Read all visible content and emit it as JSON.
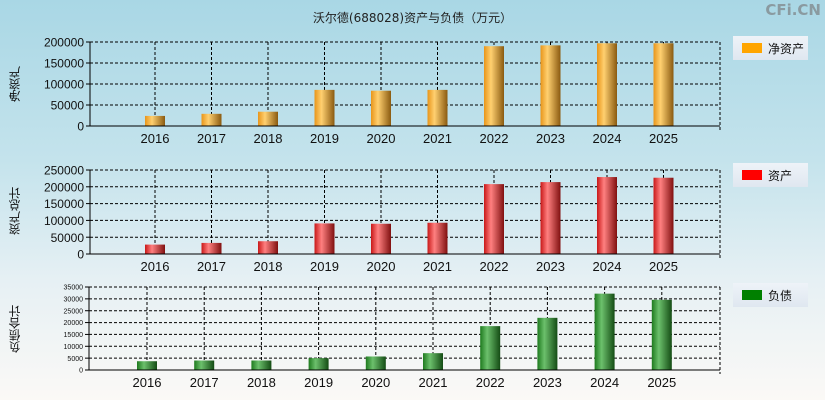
{
  "title": "沃尔德(688028)资产与负债（万元）",
  "watermark": "CFi.CN",
  "chart_data": [
    {
      "type": "bar",
      "ylabel": "净资产",
      "legend": "净资产",
      "color": "#ffa500",
      "categories": [
        "2016",
        "2017",
        "2018",
        "2019",
        "2020",
        "2021",
        "2022",
        "2023",
        "2024",
        "2025"
      ],
      "values": [
        24000,
        29000,
        34000,
        86000,
        84000,
        86000,
        190000,
        192000,
        197000,
        197000
      ],
      "ylim": [
        0,
        200000
      ],
      "yticks": [
        0,
        50000,
        100000,
        150000,
        200000
      ],
      "grid": true,
      "legend_position": "right"
    },
    {
      "type": "bar",
      "ylabel": "资产总计",
      "legend": "资产",
      "color": "#ff0000",
      "categories": [
        "2016",
        "2017",
        "2018",
        "2019",
        "2020",
        "2021",
        "2022",
        "2023",
        "2024",
        "2025"
      ],
      "values": [
        28000,
        33000,
        38000,
        91000,
        90000,
        93000,
        208000,
        214000,
        229000,
        227000
      ],
      "ylim": [
        0,
        250000
      ],
      "yticks": [
        0,
        50000,
        100000,
        150000,
        200000,
        250000
      ],
      "grid": true,
      "legend_position": "right"
    },
    {
      "type": "bar",
      "ylabel": "负债合计",
      "legend": "负债",
      "color": "#008000",
      "categories": [
        "2016",
        "2017",
        "2018",
        "2019",
        "2020",
        "2021",
        "2022",
        "2023",
        "2024",
        "2025"
      ],
      "values": [
        3700,
        4000,
        4000,
        5000,
        5700,
        7100,
        18500,
        22000,
        32200,
        29600
      ],
      "ylim": [
        0,
        35000
      ],
      "yticks": [
        0,
        5000,
        10000,
        15000,
        20000,
        25000,
        30000,
        35000
      ],
      "grid": true,
      "legend_position": "right"
    }
  ]
}
